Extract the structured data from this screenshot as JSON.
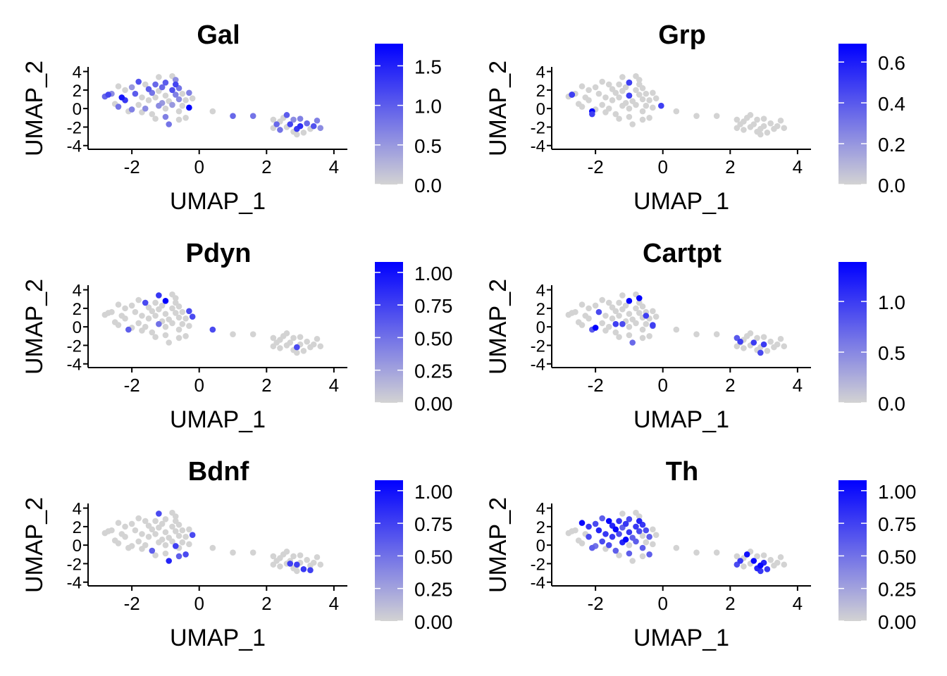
{
  "figure": {
    "grid": false,
    "point_color_low": "#d3d3d3",
    "point_color_high": "#0000ff"
  },
  "cell_positions": [
    [
      -2.8,
      1.3
    ],
    [
      -2.7,
      1.5
    ],
    [
      -2.6,
      1.6
    ],
    [
      -2.4,
      2.4
    ],
    [
      -2.5,
      0.5
    ],
    [
      -2.4,
      0.2
    ],
    [
      -2.3,
      1.2
    ],
    [
      -2.2,
      0.9
    ],
    [
      -2.2,
      2.0
    ],
    [
      -2.1,
      -0.3
    ],
    [
      -2.0,
      2.3
    ],
    [
      -2.0,
      -0.1
    ],
    [
      -1.9,
      1.6
    ],
    [
      -1.8,
      0.4
    ],
    [
      -1.8,
      2.9
    ],
    [
      -1.7,
      1.2
    ],
    [
      -1.7,
      -0.4
    ],
    [
      -1.6,
      0.0
    ],
    [
      -1.6,
      2.6
    ],
    [
      -1.5,
      2.1
    ],
    [
      -1.5,
      0.9
    ],
    [
      -1.4,
      1.7
    ],
    [
      -1.4,
      -0.6
    ],
    [
      -1.3,
      1.2
    ],
    [
      -1.3,
      2.6
    ],
    [
      -1.2,
      0.3
    ],
    [
      -1.2,
      1.9
    ],
    [
      -1.2,
      3.4
    ],
    [
      -1.1,
      0.6
    ],
    [
      -1.1,
      2.3
    ],
    [
      -1.0,
      -0.9
    ],
    [
      -1.0,
      0.0
    ],
    [
      -1.0,
      1.4
    ],
    [
      -1.0,
      2.8
    ],
    [
      -0.9,
      0.8
    ],
    [
      -0.9,
      -1.7
    ],
    [
      -0.8,
      2.0
    ],
    [
      -0.8,
      3.5
    ],
    [
      -0.8,
      0.4
    ],
    [
      -0.7,
      1.5
    ],
    [
      -0.7,
      2.6
    ],
    [
      -0.7,
      3.1
    ],
    [
      -0.6,
      -0.3
    ],
    [
      -0.6,
      1.0
    ],
    [
      -0.6,
      2.2
    ],
    [
      -0.5,
      0.3
    ],
    [
      -0.5,
      1.6
    ],
    [
      -0.4,
      -1.0
    ],
    [
      -0.4,
      0.9
    ],
    [
      -0.3,
      1.7
    ],
    [
      -0.3,
      0.1
    ],
    [
      -0.2,
      1.1
    ],
    [
      -0.6,
      -1.2
    ],
    [
      -1.3,
      -1.1
    ],
    [
      0.4,
      -0.3
    ],
    [
      1.0,
      -0.8
    ],
    [
      1.6,
      -0.8
    ],
    [
      2.2,
      -1.2
    ],
    [
      2.2,
      -2.1
    ],
    [
      2.3,
      -1.7
    ],
    [
      2.4,
      -1.4
    ],
    [
      2.5,
      -1.0
    ],
    [
      2.6,
      -0.7
    ],
    [
      2.6,
      -2.0
    ],
    [
      2.7,
      -1.7
    ],
    [
      2.8,
      -1.2
    ],
    [
      2.8,
      -2.5
    ],
    [
      2.9,
      -2.2
    ],
    [
      2.9,
      -2.8
    ],
    [
      3.0,
      -1.9
    ],
    [
      3.0,
      -1.1
    ],
    [
      3.1,
      -2.6
    ],
    [
      3.2,
      -1.6
    ],
    [
      3.3,
      -2.2
    ],
    [
      3.4,
      -1.9
    ],
    [
      3.5,
      -1.3
    ],
    [
      3.6,
      -2.1
    ],
    [
      2.4,
      -2.3
    ]
  ],
  "chart_data": [
    {
      "type": "scatter",
      "title": "Gal",
      "xlabel": "UMAP_1",
      "ylabel": "UMAP_2",
      "xlim": [
        -3.3,
        4.4
      ],
      "ylim": [
        -4.4,
        4.5
      ],
      "xticks": [
        -2,
        0,
        2,
        4
      ],
      "yticks": [
        -4,
        -2,
        0,
        2,
        4
      ],
      "x_tick_labels": [
        "-2",
        "0",
        "2",
        "4"
      ],
      "y_tick_labels": [
        "-4",
        "-2",
        "0",
        "2",
        "4"
      ],
      "legend": {
        "placement": "right",
        "min": 0.0,
        "max": 1.78,
        "ticks": [
          0.0,
          0.5,
          1.0,
          1.5
        ],
        "tick_labels": [
          "0.0",
          "0.5",
          "1.0",
          "1.5"
        ]
      },
      "expression": [
        0.9,
        1.2,
        0.6,
        0,
        0,
        0.8,
        1.6,
        1.3,
        0,
        0,
        0.5,
        0.7,
        1.0,
        0,
        1.1,
        0,
        0,
        0.6,
        0,
        1.0,
        0,
        0.8,
        0,
        0,
        0.9,
        0.6,
        0,
        0,
        0.5,
        0.9,
        0.7,
        0,
        0,
        1.0,
        0,
        0.8,
        1.1,
        0,
        0.5,
        0.7,
        1.2,
        0.6,
        0,
        0.6,
        0.8,
        0,
        0,
        0,
        0,
        0.7,
        1.78,
        0,
        0,
        0,
        0,
        0.9,
        0.8,
        0,
        0,
        0.9,
        0,
        0,
        1.0,
        0,
        1.2,
        0.6,
        0,
        1.3,
        0,
        1.4,
        0.7,
        0,
        0.9,
        0,
        1.1,
        0.7,
        0.6,
        0.8
      ]
    },
    {
      "type": "scatter",
      "title": "Grp",
      "xlabel": "UMAP_1",
      "ylabel": "UMAP_2",
      "xlim": [
        -3.3,
        4.4
      ],
      "ylim": [
        -4.4,
        4.5
      ],
      "xticks": [
        -2,
        0,
        2,
        4
      ],
      "yticks": [
        -4,
        -2,
        0,
        2,
        4
      ],
      "x_tick_labels": [
        "-2",
        "0",
        "2",
        "4"
      ],
      "y_tick_labels": [
        "-4",
        "-2",
        "0",
        "2",
        "4"
      ],
      "legend": {
        "placement": "right",
        "min": 0.0,
        "max": 0.69,
        "ticks": [
          0.0,
          0.2,
          0.4,
          0.6
        ],
        "tick_labels": [
          "0.0",
          "0.2",
          "0.4",
          "0.6"
        ]
      },
      "expression": [
        0,
        0.69,
        0,
        0,
        0,
        0,
        0,
        0,
        0,
        0.69,
        0,
        0,
        0,
        0,
        0,
        0,
        0,
        0,
        0,
        0,
        0,
        0,
        0,
        0,
        0,
        0,
        0,
        0,
        0,
        0,
        0,
        0,
        0.69,
        0.69,
        0,
        0,
        0,
        0,
        0,
        0,
        0,
        0,
        0,
        0,
        0,
        0,
        0,
        0,
        0,
        0,
        0,
        0,
        0,
        0,
        0,
        0,
        0,
        0,
        0,
        0,
        0,
        0,
        0,
        0,
        0,
        0,
        0,
        0,
        0,
        0,
        0,
        0,
        0,
        0,
        0,
        0,
        0,
        0,
        0,
        0
      ],
      "highlight_cells": [
        [
          -2.7,
          1.5
        ],
        [
          -2.1,
          -0.6
        ],
        [
          -1.0,
          2.8
        ],
        [
          -1.0,
          1.4
        ],
        [
          -0.05,
          0.3
        ]
      ]
    },
    {
      "type": "scatter",
      "title": "Pdyn",
      "xlabel": "UMAP_1",
      "ylabel": "UMAP_2",
      "xlim": [
        -3.3,
        4.4
      ],
      "ylim": [
        -4.4,
        4.5
      ],
      "xticks": [
        -2,
        0,
        2,
        4
      ],
      "yticks": [
        -4,
        -2,
        0,
        2,
        4
      ],
      "x_tick_labels": [
        "-2",
        "0",
        "2",
        "4"
      ],
      "y_tick_labels": [
        "-4",
        "-2",
        "0",
        "2",
        "4"
      ],
      "legend": {
        "placement": "right",
        "min": 0.0,
        "max": 1.08,
        "ticks": [
          0.0,
          0.25,
          0.5,
          0.75,
          1.0
        ],
        "tick_labels": [
          "0.00",
          "0.25",
          "0.50",
          "0.75",
          "1.00"
        ]
      },
      "expression": [
        0,
        0,
        0,
        0,
        0,
        0,
        0,
        0,
        0,
        0.6,
        0,
        0,
        0,
        0,
        0,
        0,
        0,
        0,
        0.7,
        0,
        0,
        0,
        0,
        0,
        0,
        0.5,
        0,
        0.8,
        0,
        0,
        0,
        0,
        0,
        1.08,
        0,
        0,
        0,
        0,
        0,
        0,
        0,
        0,
        0,
        0,
        0,
        0,
        0,
        0,
        0,
        0.7,
        0,
        0.7,
        0,
        0,
        0.7,
        0,
        0,
        0,
        0,
        0,
        0,
        0,
        0,
        0,
        0,
        0,
        0,
        0.7,
        0,
        0,
        0,
        0,
        0,
        0,
        0,
        0,
        0,
        0
      ]
    },
    {
      "type": "scatter",
      "title": "Cartpt",
      "xlabel": "UMAP_1",
      "ylabel": "UMAP_2",
      "xlim": [
        -3.3,
        4.4
      ],
      "ylim": [
        -4.4,
        4.5
      ],
      "xticks": [
        -2,
        0,
        2,
        4
      ],
      "yticks": [
        -4,
        -2,
        0,
        2,
        4
      ],
      "x_tick_labels": [
        "-2",
        "0",
        "2",
        "4"
      ],
      "y_tick_labels": [
        "-4",
        "-2",
        "0",
        "2",
        "4"
      ],
      "legend": {
        "placement": "right",
        "min": 0.0,
        "max": 1.39,
        "ticks": [
          0.0,
          0.5,
          1.0
        ],
        "tick_labels": [
          "0.0",
          "0.5",
          "1.0"
        ]
      },
      "expression": [
        0,
        0,
        0,
        0,
        0,
        0,
        0,
        0,
        0,
        0.8,
        0,
        1.39,
        0.9,
        0,
        0,
        0,
        0,
        0,
        0,
        0,
        0,
        0,
        0,
        0,
        0,
        0.9,
        0,
        0,
        0,
        0,
        0,
        0,
        0,
        1.39,
        0,
        0.7,
        0,
        0,
        0,
        0,
        0,
        1.39,
        0,
        0,
        0,
        0,
        0,
        0,
        0,
        0,
        0.8,
        0,
        0,
        0,
        0,
        0,
        0,
        0.8,
        0,
        0,
        0,
        0,
        0,
        0,
        1.0,
        0,
        0,
        0,
        0.9,
        1.0,
        0,
        0,
        0,
        0,
        0,
        0,
        0,
        0
      ],
      "highlight_cells": [
        [
          -1.4,
          0.3
        ],
        [
          -0.5,
          1.2
        ],
        [
          -0.3,
          0.2
        ],
        [
          2.3,
          -1.6
        ]
      ]
    },
    {
      "type": "scatter",
      "title": "Bdnf",
      "xlabel": "UMAP_1",
      "ylabel": "UMAP_2",
      "xlim": [
        -3.3,
        4.4
      ],
      "ylim": [
        -4.4,
        4.5
      ],
      "xticks": [
        -2,
        0,
        2,
        4
      ],
      "yticks": [
        -4,
        -2,
        0,
        2,
        4
      ],
      "x_tick_labels": [
        "-2",
        "0",
        "2",
        "4"
      ],
      "y_tick_labels": [
        "-4",
        "-2",
        "0",
        "2",
        "4"
      ],
      "legend": {
        "placement": "right",
        "min": 0.0,
        "max": 1.08,
        "ticks": [
          0.0,
          0.25,
          0.5,
          0.75,
          1.0
        ],
        "tick_labels": [
          "0.00",
          "0.25",
          "0.50",
          "0.75",
          "1.00"
        ]
      },
      "expression": [
        0,
        0,
        0,
        0,
        0,
        0,
        0,
        0,
        0,
        0,
        0,
        0,
        0,
        0,
        0,
        0,
        0,
        0,
        0,
        0,
        0,
        0,
        0.6,
        0,
        0,
        0,
        0,
        0.7,
        0,
        0,
        0,
        0,
        0,
        0,
        0,
        0.9,
        0,
        0,
        0,
        0,
        0,
        0,
        0,
        0,
        0,
        0,
        0,
        0.7,
        0,
        0,
        0,
        0.7,
        0.6,
        0,
        0,
        0,
        0,
        0,
        0,
        0,
        0,
        0,
        0,
        0,
        0,
        0,
        0,
        0,
        0,
        0,
        0,
        0.8,
        0,
        0,
        0,
        0,
        0,
        0
      ],
      "highlight_cells": [
        [
          -0.7,
          -0.1
        ],
        [
          2.7,
          -2.0
        ],
        [
          2.9,
          -2.1
        ],
        [
          3.3,
          -2.7
        ]
      ]
    },
    {
      "type": "scatter",
      "title": "Th",
      "xlabel": "UMAP_1",
      "ylabel": "UMAP_2",
      "xlim": [
        -3.3,
        4.4
      ],
      "ylim": [
        -4.4,
        4.5
      ],
      "xticks": [
        -2,
        0,
        2,
        4
      ],
      "yticks": [
        -4,
        -2,
        0,
        2,
        4
      ],
      "x_tick_labels": [
        "-2",
        "0",
        "2",
        "4"
      ],
      "y_tick_labels": [
        "-4",
        "-2",
        "0",
        "2",
        "4"
      ],
      "legend": {
        "placement": "right",
        "min": 0.0,
        "max": 1.08,
        "ticks": [
          0.0,
          0.25,
          0.5,
          0.75,
          1.0
        ],
        "tick_labels": [
          "0.00",
          "0.25",
          "0.50",
          "0.75",
          "1.00"
        ]
      },
      "expression": [
        0,
        0,
        0,
        1.05,
        0,
        0,
        0,
        0.7,
        0.8,
        0.6,
        0.7,
        0.5,
        0.9,
        0.7,
        0.6,
        0.8,
        0,
        0.7,
        1.05,
        0.9,
        0.8,
        1.05,
        0.6,
        0.7,
        0.8,
        0.9,
        0.6,
        0,
        1.05,
        0.8,
        0.6,
        0,
        0.8,
        0.7,
        0.6,
        0,
        0.8,
        0,
        0.6,
        0.7,
        0.9,
        0,
        0.6,
        0,
        0.8,
        0,
        0.7,
        0.6,
        0.6,
        0,
        0,
        0,
        0,
        0,
        0,
        0,
        0,
        0,
        0.7,
        0.8,
        0,
        1.0,
        0,
        0,
        1.05,
        0,
        0.9,
        1.05,
        0.8,
        0.9,
        0,
        0.8,
        0,
        0,
        0,
        0,
        0,
        0
      ]
    }
  ]
}
